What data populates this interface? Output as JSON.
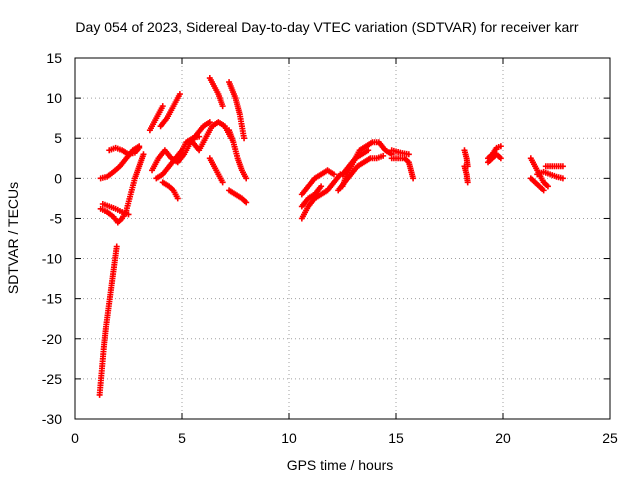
{
  "chart_data": {
    "type": "scatter",
    "title": "Day 054 of 2023, Sidereal Day-to-day VTEC variation (SDTVAR) for receiver karr",
    "xlabel": "GPS time / hours",
    "ylabel": "SDTVAR / TECUs",
    "xlim": [
      0,
      25
    ],
    "ylim": [
      -30,
      15
    ],
    "xticks": [
      0,
      5,
      10,
      15,
      20,
      25
    ],
    "yticks": [
      -30,
      -25,
      -20,
      -15,
      -10,
      -5,
      0,
      5,
      10,
      15
    ],
    "grid": true,
    "marker": "+",
    "color": "#ff0000",
    "series": [
      {
        "points": [
          [
            1.15,
            -27.0
          ],
          [
            1.25,
            -24.0
          ],
          [
            1.35,
            -21.0
          ],
          [
            1.45,
            -18.5
          ],
          [
            1.55,
            -16.5
          ],
          [
            1.65,
            -14.5
          ],
          [
            1.75,
            -12.5
          ],
          [
            1.85,
            -10.5
          ],
          [
            1.95,
            -8.5
          ]
        ]
      },
      {
        "points": [
          [
            1.2,
            0.0
          ],
          [
            1.5,
            0.2
          ],
          [
            1.8,
            0.8
          ],
          [
            2.1,
            1.5
          ],
          [
            2.4,
            2.5
          ],
          [
            2.7,
            3.5
          ],
          [
            3.0,
            4.0
          ]
        ]
      },
      {
        "points": [
          [
            1.2,
            -3.8
          ],
          [
            1.5,
            -4.2
          ],
          [
            1.8,
            -4.8
          ],
          [
            2.0,
            -5.5
          ],
          [
            2.2,
            -5.0
          ],
          [
            2.4,
            -4.0
          ],
          [
            2.6,
            -2.0
          ],
          [
            2.8,
            0.0
          ],
          [
            3.0,
            1.5
          ],
          [
            3.2,
            3.0
          ]
        ]
      },
      {
        "points": [
          [
            1.3,
            -3.2
          ],
          [
            1.6,
            -3.5
          ],
          [
            1.9,
            -3.8
          ],
          [
            2.2,
            -4.2
          ],
          [
            2.5,
            -4.5
          ]
        ]
      },
      {
        "points": [
          [
            1.6,
            3.5
          ],
          [
            1.9,
            3.8
          ],
          [
            2.2,
            3.5
          ],
          [
            2.5,
            3.0
          ],
          [
            2.8,
            3.2
          ],
          [
            3.0,
            3.8
          ]
        ]
      },
      {
        "points": [
          [
            3.5,
            6.0
          ],
          [
            3.7,
            7.0
          ],
          [
            3.9,
            8.0
          ],
          [
            4.1,
            9.0
          ]
        ]
      },
      {
        "points": [
          [
            3.6,
            1.0
          ],
          [
            3.9,
            2.5
          ],
          [
            4.2,
            3.5
          ],
          [
            4.5,
            2.5
          ],
          [
            4.8,
            2.0
          ],
          [
            5.1,
            3.0
          ],
          [
            5.4,
            4.5
          ],
          [
            5.7,
            5.5
          ],
          [
            6.0,
            6.5
          ],
          [
            6.3,
            7.0
          ]
        ]
      },
      {
        "points": [
          [
            3.8,
            0.0
          ],
          [
            4.1,
            0.5
          ],
          [
            4.4,
            1.5
          ],
          [
            4.7,
            2.5
          ],
          [
            5.0,
            3.5
          ],
          [
            5.2,
            4.5
          ],
          [
            5.5,
            5.0
          ],
          [
            5.8,
            5.2
          ]
        ]
      },
      {
        "points": [
          [
            4.0,
            6.5
          ],
          [
            4.3,
            7.5
          ],
          [
            4.6,
            9.0
          ],
          [
            4.9,
            10.5
          ]
        ]
      },
      {
        "points": [
          [
            4.1,
            -0.5
          ],
          [
            4.4,
            -1.0
          ],
          [
            4.6,
            -1.5
          ],
          [
            4.8,
            -2.5
          ]
        ]
      },
      {
        "points": [
          [
            5.5,
            4.5
          ],
          [
            5.8,
            3.5
          ],
          [
            6.1,
            5.0
          ],
          [
            6.4,
            6.5
          ],
          [
            6.7,
            7.0
          ],
          [
            7.0,
            6.5
          ],
          [
            7.3,
            5.0
          ]
        ]
      },
      {
        "points": [
          [
            6.3,
            12.5
          ],
          [
            6.5,
            11.5
          ],
          [
            6.7,
            10.5
          ],
          [
            6.9,
            9.0
          ]
        ]
      },
      {
        "points": [
          [
            6.3,
            2.5
          ],
          [
            6.5,
            1.5
          ],
          [
            6.7,
            0.5
          ],
          [
            6.9,
            -0.5
          ]
        ]
      },
      {
        "points": [
          [
            7.2,
            12.0
          ],
          [
            7.35,
            11.0
          ],
          [
            7.5,
            10.0
          ],
          [
            7.6,
            9.0
          ],
          [
            7.7,
            8.0
          ],
          [
            7.8,
            6.5
          ],
          [
            7.9,
            5.0
          ]
        ]
      },
      {
        "points": [
          [
            7.2,
            6.0
          ],
          [
            7.4,
            4.5
          ],
          [
            7.6,
            2.5
          ],
          [
            7.8,
            1.0
          ],
          [
            8.0,
            0.0
          ]
        ]
      },
      {
        "points": [
          [
            7.2,
            -1.5
          ],
          [
            7.5,
            -2.0
          ],
          [
            7.8,
            -2.5
          ],
          [
            8.0,
            -3.0
          ]
        ]
      },
      {
        "points": [
          [
            10.6,
            -5.0
          ],
          [
            10.9,
            -3.5
          ],
          [
            11.2,
            -2.5
          ],
          [
            11.5,
            -2.0
          ],
          [
            11.8,
            -1.5
          ],
          [
            12.1,
            -0.5
          ],
          [
            12.4,
            0.5
          ]
        ]
      },
      {
        "points": [
          [
            10.6,
            -2.0
          ],
          [
            10.9,
            -1.0
          ],
          [
            11.2,
            0.0
          ],
          [
            11.5,
            0.5
          ],
          [
            11.8,
            1.0
          ],
          [
            12.1,
            0.5
          ]
        ]
      },
      {
        "points": [
          [
            10.6,
            -3.5
          ],
          [
            10.9,
            -2.5
          ],
          [
            11.2,
            -2.0
          ],
          [
            11.5,
            -1.0
          ]
        ]
      },
      {
        "points": [
          [
            12.3,
            -1.5
          ],
          [
            12.6,
            -0.5
          ],
          [
            12.9,
            0.5
          ],
          [
            13.2,
            1.5
          ],
          [
            13.5,
            2.0
          ],
          [
            13.8,
            2.5
          ],
          [
            14.1,
            2.5
          ],
          [
            14.4,
            2.8
          ]
        ]
      },
      {
        "points": [
          [
            12.5,
            -1.0
          ],
          [
            12.7,
            0.5
          ],
          [
            12.9,
            1.5
          ],
          [
            13.1,
            2.5
          ],
          [
            13.3,
            3.5
          ],
          [
            13.6,
            4.0
          ],
          [
            13.9,
            4.5
          ],
          [
            14.2,
            4.5
          ],
          [
            14.5,
            3.5
          ],
          [
            14.8,
            3.0
          ]
        ]
      },
      {
        "points": [
          [
            12.5,
            0.5
          ],
          [
            12.8,
            1.5
          ],
          [
            13.1,
            2.5
          ],
          [
            13.4,
            3.0
          ],
          [
            13.7,
            3.5
          ]
        ]
      },
      {
        "points": [
          [
            14.8,
            2.5
          ],
          [
            15.1,
            2.5
          ],
          [
            15.4,
            2.5
          ],
          [
            15.6,
            2.0
          ],
          [
            15.7,
            1.0
          ],
          [
            15.8,
            0.0
          ]
        ]
      },
      {
        "points": [
          [
            14.8,
            3.5
          ],
          [
            15.2,
            3.2
          ],
          [
            15.6,
            3.0
          ]
        ]
      },
      {
        "points": [
          [
            18.2,
            3.5
          ],
          [
            18.3,
            2.5
          ],
          [
            18.35,
            1.5
          ]
        ]
      },
      {
        "points": [
          [
            18.2,
            1.5
          ],
          [
            18.3,
            0.5
          ],
          [
            18.35,
            -0.5
          ]
        ]
      },
      {
        "points": [
          [
            19.3,
            2.5
          ],
          [
            19.5,
            3.0
          ],
          [
            19.7,
            3.8
          ],
          [
            19.9,
            4.0
          ]
        ]
      },
      {
        "points": [
          [
            19.3,
            2.0
          ],
          [
            19.5,
            2.5
          ],
          [
            19.7,
            3.0
          ],
          [
            19.9,
            2.5
          ]
        ]
      },
      {
        "points": [
          [
            21.3,
            2.5
          ],
          [
            21.5,
            1.5
          ],
          [
            21.7,
            0.5
          ],
          [
            21.9,
            -0.5
          ],
          [
            22.1,
            -1.0
          ]
        ]
      },
      {
        "points": [
          [
            21.3,
            0.0
          ],
          [
            21.5,
            -0.5
          ],
          [
            21.7,
            -1.0
          ],
          [
            21.9,
            -1.5
          ]
        ]
      },
      {
        "points": [
          [
            21.6,
            0.5
          ],
          [
            21.9,
            0.8
          ],
          [
            22.2,
            0.5
          ],
          [
            22.5,
            0.2
          ],
          [
            22.8,
            0.0
          ]
        ]
      },
      {
        "points": [
          [
            22.0,
            1.5
          ],
          [
            22.3,
            1.5
          ],
          [
            22.6,
            1.5
          ],
          [
            22.8,
            1.5
          ]
        ]
      }
    ]
  }
}
